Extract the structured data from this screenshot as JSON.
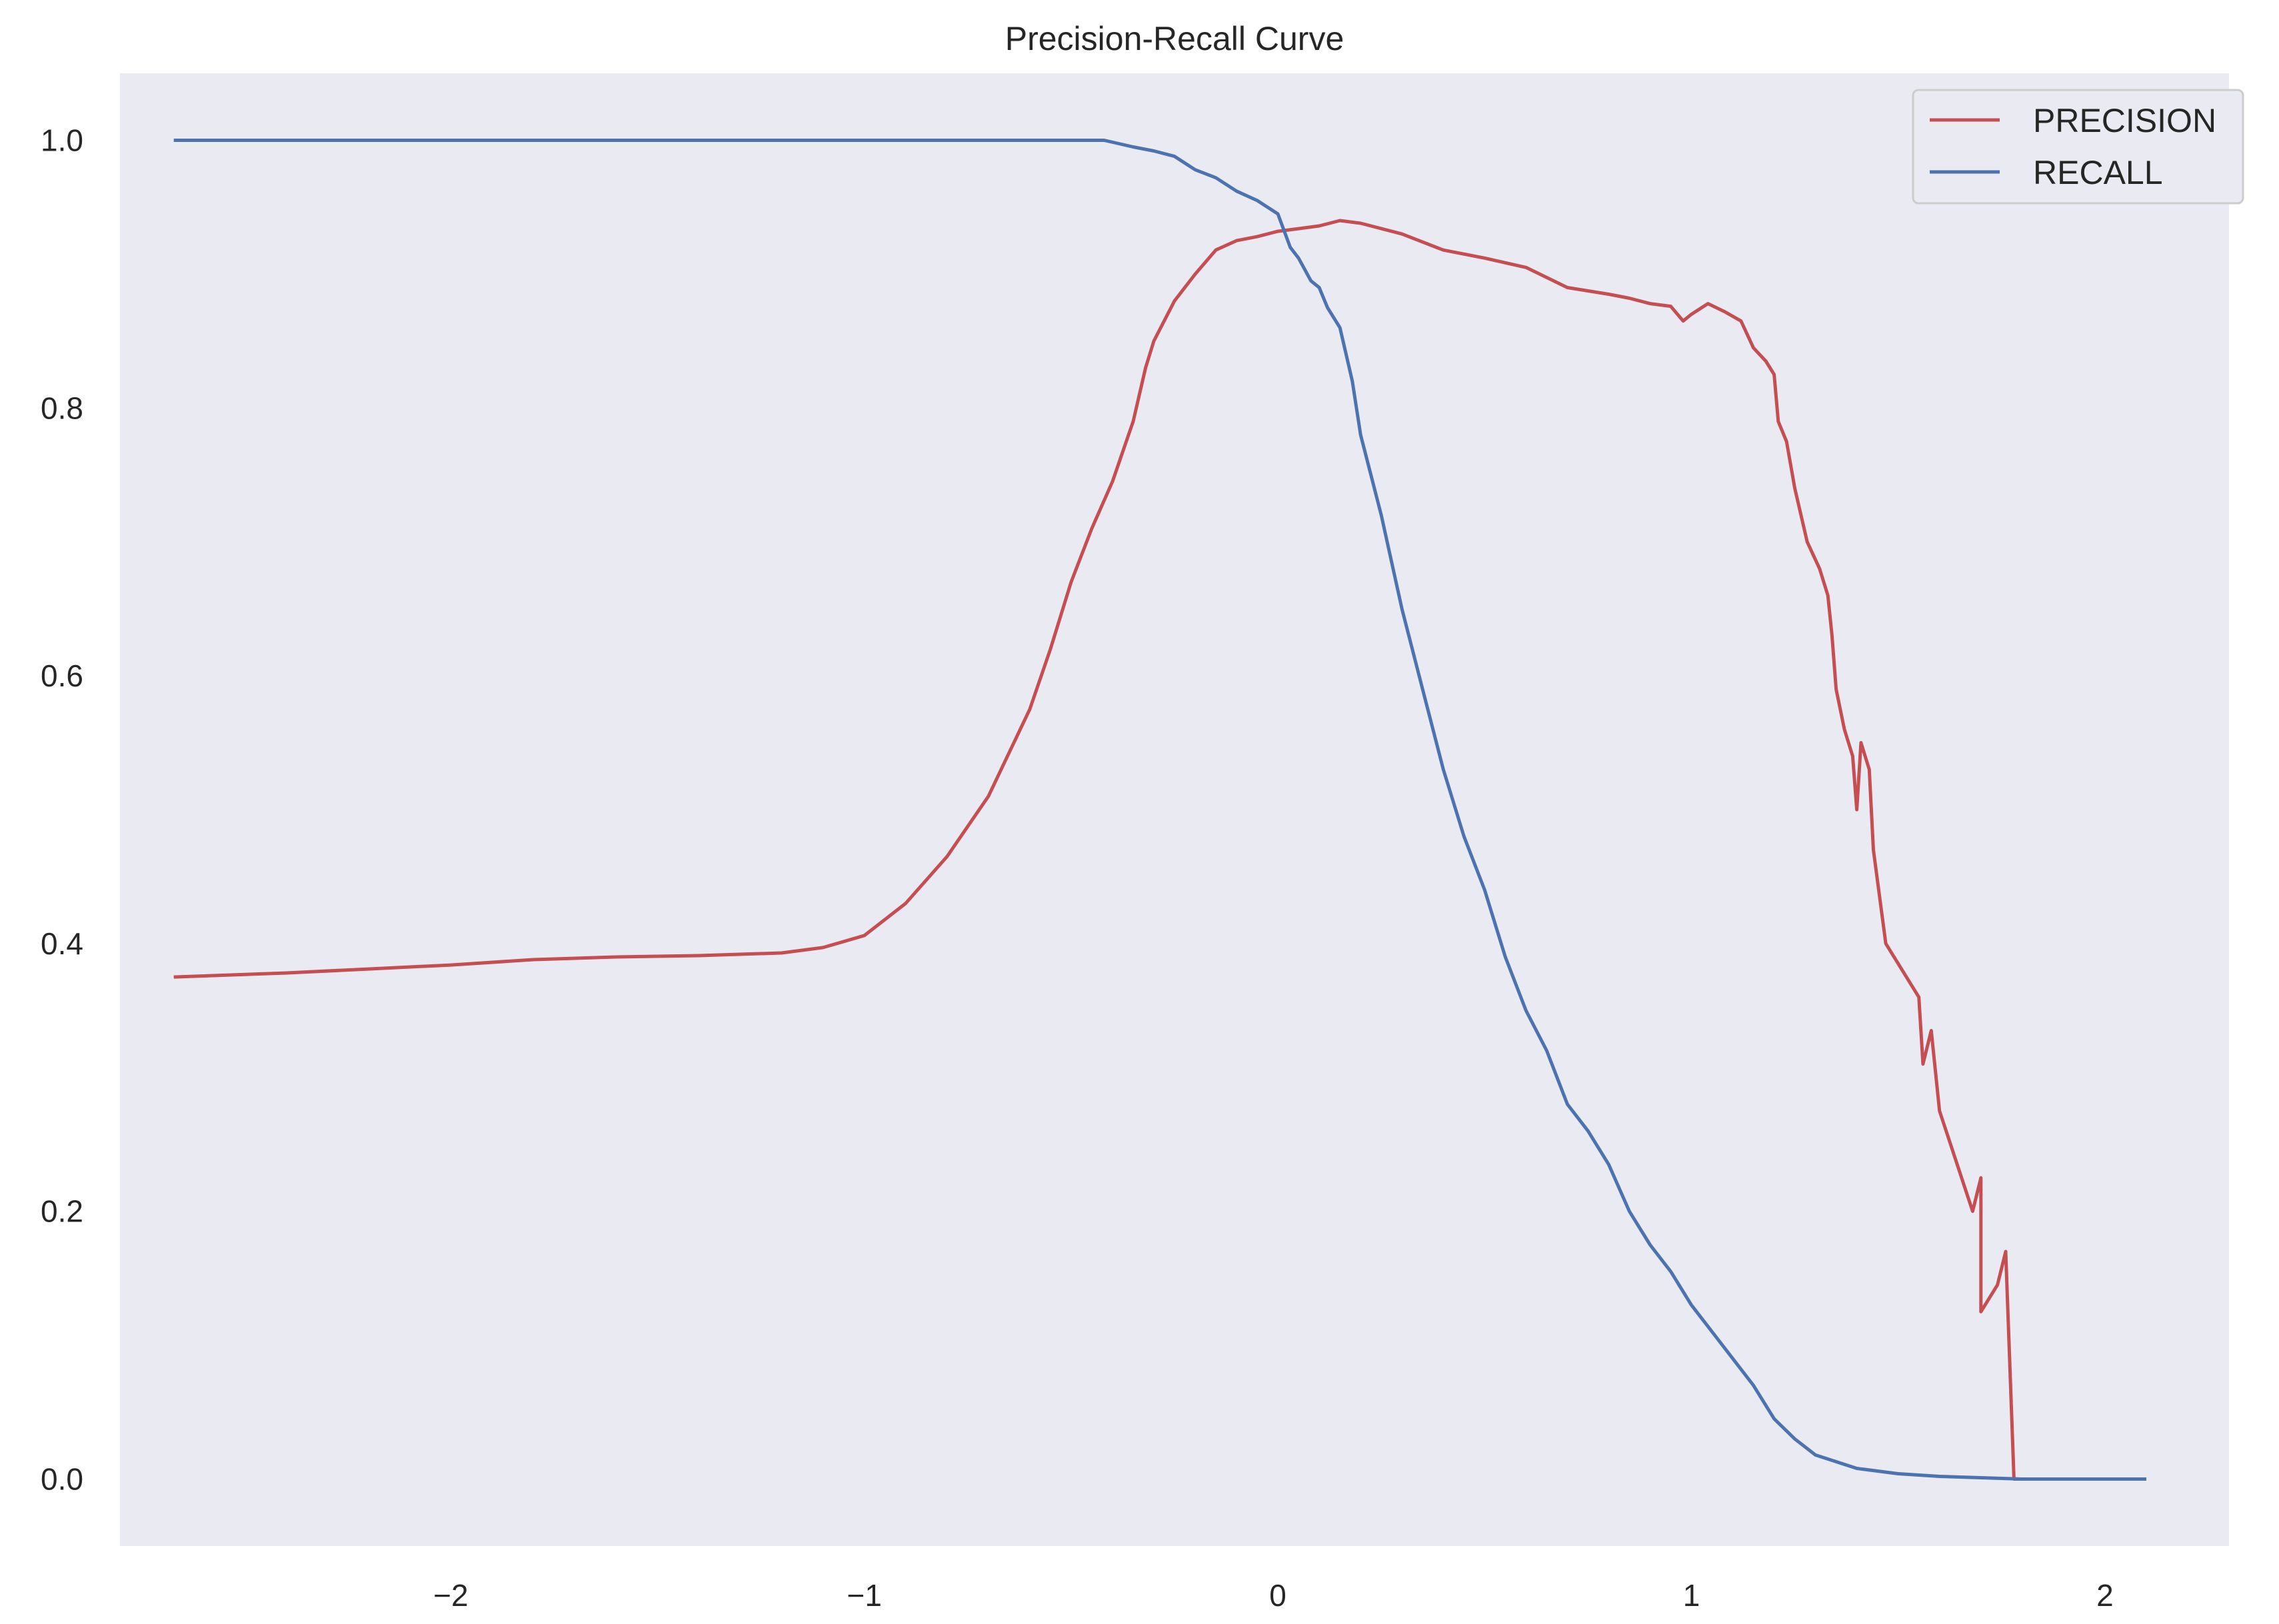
{
  "chart_data": {
    "type": "line",
    "title": "Precision-Recall Curve",
    "xlabel": "",
    "ylabel": "",
    "xlim": [
      -2.8,
      2.3
    ],
    "ylim": [
      -0.05,
      1.05
    ],
    "xticks": [
      {
        "value": -2,
        "label": "−2"
      },
      {
        "value": -1,
        "label": "−1"
      },
      {
        "value": 0,
        "label": "0"
      },
      {
        "value": 1,
        "label": "1"
      },
      {
        "value": 2,
        "label": "2"
      }
    ],
    "yticks": [
      {
        "value": 0.0,
        "label": "0.0"
      },
      {
        "value": 0.2,
        "label": "0.2"
      },
      {
        "value": 0.4,
        "label": "0.4"
      },
      {
        "value": 0.6,
        "label": "0.6"
      },
      {
        "value": 0.8,
        "label": "0.8"
      },
      {
        "value": 1.0,
        "label": "1.0"
      }
    ],
    "grid": false,
    "background": "#eaeaf2",
    "legend_position": "top-right",
    "series": [
      {
        "name": "PRECISION",
        "color": "#c44e52",
        "points": [
          [
            -2.67,
            0.375
          ],
          [
            -2.4,
            0.378
          ],
          [
            -2.2,
            0.381
          ],
          [
            -2.0,
            0.384
          ],
          [
            -1.8,
            0.388
          ],
          [
            -1.6,
            0.39
          ],
          [
            -1.4,
            0.391
          ],
          [
            -1.2,
            0.393
          ],
          [
            -1.1,
            0.397
          ],
          [
            -1.0,
            0.406
          ],
          [
            -0.9,
            0.43
          ],
          [
            -0.8,
            0.465
          ],
          [
            -0.7,
            0.51
          ],
          [
            -0.6,
            0.575
          ],
          [
            -0.55,
            0.62
          ],
          [
            -0.5,
            0.67
          ],
          [
            -0.45,
            0.71
          ],
          [
            -0.4,
            0.745
          ],
          [
            -0.35,
            0.79
          ],
          [
            -0.32,
            0.83
          ],
          [
            -0.3,
            0.85
          ],
          [
            -0.25,
            0.88
          ],
          [
            -0.2,
            0.9
          ],
          [
            -0.15,
            0.918
          ],
          [
            -0.1,
            0.925
          ],
          [
            -0.05,
            0.928
          ],
          [
            0.0,
            0.932
          ],
          [
            0.05,
            0.934
          ],
          [
            0.1,
            0.936
          ],
          [
            0.15,
            0.94
          ],
          [
            0.2,
            0.938
          ],
          [
            0.3,
            0.93
          ],
          [
            0.4,
            0.918
          ],
          [
            0.5,
            0.912
          ],
          [
            0.6,
            0.905
          ],
          [
            0.7,
            0.89
          ],
          [
            0.8,
            0.885
          ],
          [
            0.85,
            0.882
          ],
          [
            0.9,
            0.878
          ],
          [
            0.95,
            0.876
          ],
          [
            0.98,
            0.865
          ],
          [
            1.0,
            0.87
          ],
          [
            1.04,
            0.878
          ],
          [
            1.08,
            0.872
          ],
          [
            1.12,
            0.865
          ],
          [
            1.15,
            0.845
          ],
          [
            1.18,
            0.835
          ],
          [
            1.2,
            0.825
          ],
          [
            1.21,
            0.79
          ],
          [
            1.23,
            0.775
          ],
          [
            1.25,
            0.74
          ],
          [
            1.28,
            0.7
          ],
          [
            1.31,
            0.68
          ],
          [
            1.33,
            0.66
          ],
          [
            1.34,
            0.63
          ],
          [
            1.35,
            0.59
          ],
          [
            1.37,
            0.56
          ],
          [
            1.39,
            0.54
          ],
          [
            1.4,
            0.5
          ],
          [
            1.41,
            0.55
          ],
          [
            1.43,
            0.53
          ],
          [
            1.44,
            0.47
          ],
          [
            1.47,
            0.4
          ],
          [
            1.55,
            0.36
          ],
          [
            1.56,
            0.31
          ],
          [
            1.58,
            0.335
          ],
          [
            1.6,
            0.275
          ],
          [
            1.68,
            0.2
          ],
          [
            1.7,
            0.225
          ],
          [
            1.7,
            0.125
          ],
          [
            1.74,
            0.145
          ],
          [
            1.76,
            0.17
          ],
          [
            1.78,
            0.0
          ],
          [
            2.1,
            0.0
          ]
        ]
      },
      {
        "name": "RECALL",
        "color": "#4c72b0",
        "points": [
          [
            -2.67,
            1.0
          ],
          [
            -1.5,
            1.0
          ],
          [
            -1.0,
            1.0
          ],
          [
            -0.5,
            1.0
          ],
          [
            -0.42,
            1.0
          ],
          [
            -0.35,
            0.995
          ],
          [
            -0.3,
            0.992
          ],
          [
            -0.25,
            0.988
          ],
          [
            -0.2,
            0.978
          ],
          [
            -0.15,
            0.972
          ],
          [
            -0.1,
            0.962
          ],
          [
            -0.05,
            0.955
          ],
          [
            0.0,
            0.945
          ],
          [
            0.03,
            0.92
          ],
          [
            0.05,
            0.912
          ],
          [
            0.08,
            0.895
          ],
          [
            0.1,
            0.89
          ],
          [
            0.12,
            0.875
          ],
          [
            0.15,
            0.86
          ],
          [
            0.18,
            0.82
          ],
          [
            0.2,
            0.78
          ],
          [
            0.25,
            0.72
          ],
          [
            0.3,
            0.65
          ],
          [
            0.35,
            0.59
          ],
          [
            0.4,
            0.53
          ],
          [
            0.45,
            0.48
          ],
          [
            0.5,
            0.44
          ],
          [
            0.55,
            0.39
          ],
          [
            0.6,
            0.35
          ],
          [
            0.65,
            0.32
          ],
          [
            0.7,
            0.28
          ],
          [
            0.75,
            0.26
          ],
          [
            0.8,
            0.235
          ],
          [
            0.85,
            0.2
          ],
          [
            0.9,
            0.175
          ],
          [
            0.95,
            0.155
          ],
          [
            1.0,
            0.13
          ],
          [
            1.05,
            0.11
          ],
          [
            1.1,
            0.09
          ],
          [
            1.15,
            0.07
          ],
          [
            1.2,
            0.045
          ],
          [
            1.25,
            0.03
          ],
          [
            1.3,
            0.018
          ],
          [
            1.4,
            0.008
          ],
          [
            1.5,
            0.004
          ],
          [
            1.6,
            0.002
          ],
          [
            1.8,
            0.0
          ],
          [
            2.1,
            0.0
          ]
        ]
      }
    ]
  }
}
